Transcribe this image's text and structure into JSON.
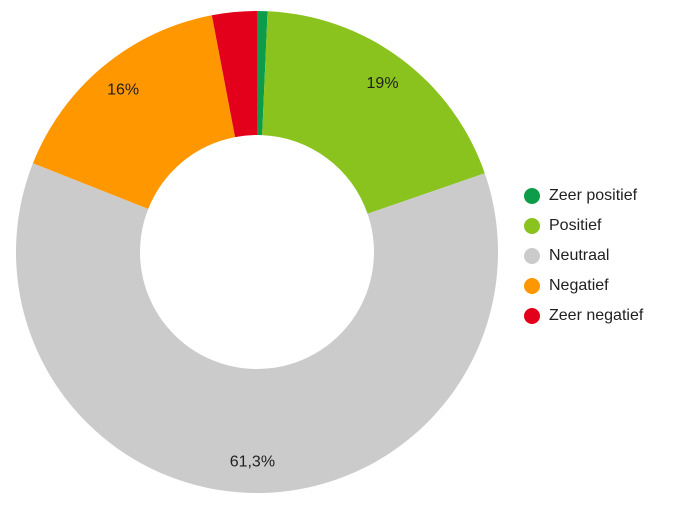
{
  "chart_data": {
    "type": "pie",
    "subtype": "donut",
    "legend_position": "right",
    "start_angle_deg": 0,
    "direction": "clockwise",
    "value_unit": "%",
    "background": "#ffffff",
    "label_text_color": "#1f1f1f",
    "slices": [
      {
        "label": "Zeer positief",
        "value": 0.7,
        "display_label": "",
        "color": "#0d9c4a"
      },
      {
        "label": "Positief",
        "value": 19,
        "display_label": "19%",
        "color": "#8ac21e"
      },
      {
        "label": "Neutraal",
        "value": 61.3,
        "display_label": "61,3%",
        "color": "#cbcbcb"
      },
      {
        "label": "Negatief",
        "value": 16,
        "display_label": "16%",
        "color": "#ff9800"
      },
      {
        "label": "Zeer negatief",
        "value": 3,
        "display_label": "",
        "color": "#e3001a"
      }
    ]
  }
}
